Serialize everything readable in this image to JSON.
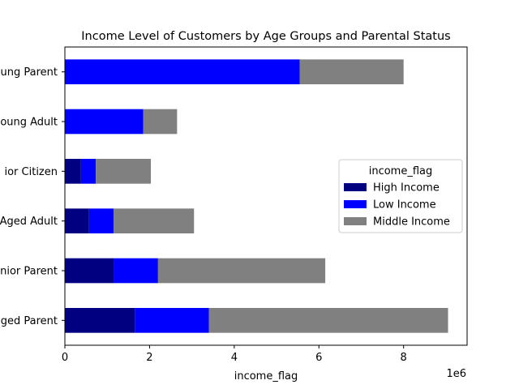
{
  "chart_data": {
    "type": "bar",
    "orientation": "horizontal",
    "stacked": true,
    "title": "Income Level of Customers by Age Groups and Parental Status",
    "xlabel": "income_flag",
    "ylabel": "",
    "x_multiplier": "1e6",
    "xlim": [
      0,
      9500000
    ],
    "x_ticks": [
      {
        "value": 0,
        "label": "0"
      },
      {
        "value": 2000000,
        "label": "2"
      },
      {
        "value": 4000000,
        "label": "4"
      },
      {
        "value": 6000000,
        "label": "6"
      },
      {
        "value": 8000000,
        "label": "8"
      }
    ],
    "categories": [
      "Middle-Aged Parent",
      "Senior Parent",
      "Middle-Aged Adult",
      "Senior Citizen",
      "Young Adult",
      "Young Parent"
    ],
    "category_labels_visible": [
      "ged Parent",
      "nior Parent",
      "Aged Adult",
      "ior Citizen",
      "oung Adult",
      "ung Parent"
    ],
    "series": [
      {
        "name": "High Income",
        "color": "#000080",
        "values": [
          1650000,
          1150000,
          570000,
          380000,
          0,
          0
        ]
      },
      {
        "name": "Low Income",
        "color": "#0000ff",
        "values": [
          1750000,
          1050000,
          580000,
          350000,
          1850000,
          5550000
        ]
      },
      {
        "name": "Middle Income",
        "color": "#808080",
        "values": [
          5650000,
          3950000,
          1900000,
          1300000,
          800000,
          2450000
        ]
      }
    ],
    "legend": {
      "title": "income_flag",
      "placement": "center-right"
    },
    "grid": false
  }
}
